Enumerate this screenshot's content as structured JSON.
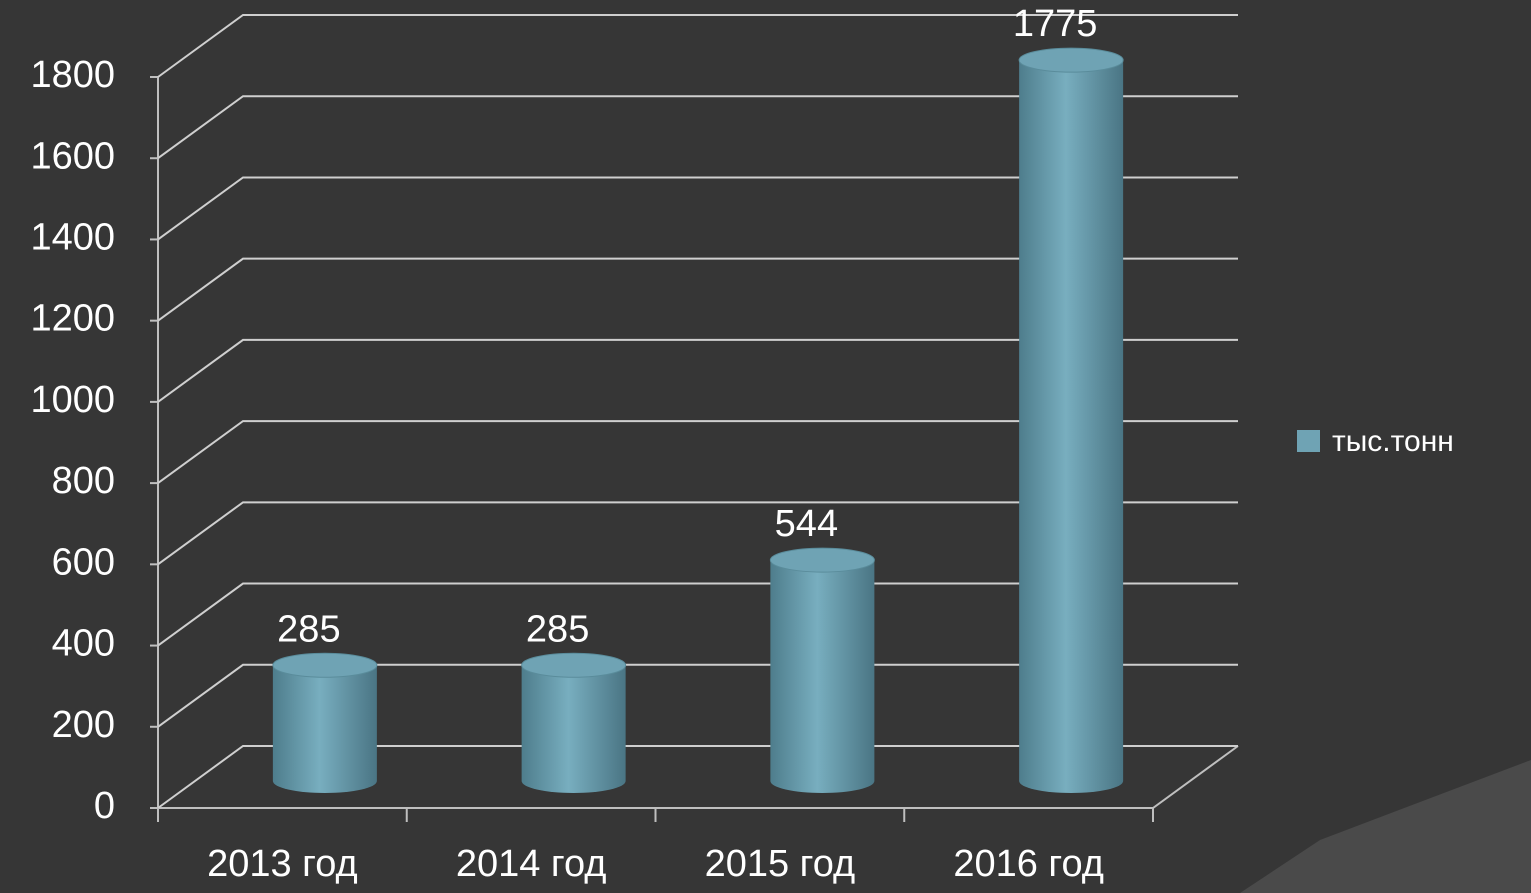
{
  "chart_data": {
    "type": "bar3d",
    "categories": [
      "2013 год",
      "2014 год",
      "2015 год",
      "2016 год"
    ],
    "series": [
      {
        "name": "тыс.тонн",
        "color": "#6fa3b4",
        "values": [
          285,
          285,
          544,
          1775
        ]
      }
    ],
    "ylim": [
      0,
      1800
    ],
    "yticks": [
      0,
      200,
      400,
      600,
      800,
      1000,
      1200,
      1400,
      1600,
      1800
    ],
    "grid": true,
    "legend": "right"
  }
}
